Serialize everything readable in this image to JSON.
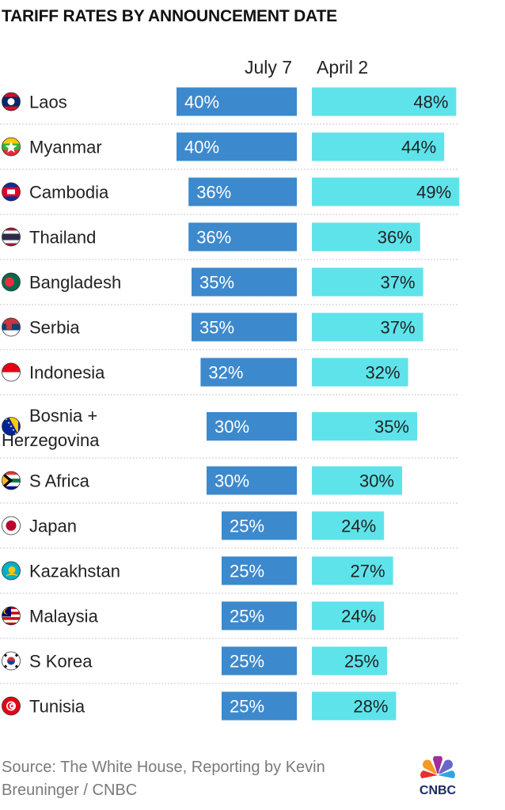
{
  "title": "TARIFF RATES BY ANNOUNCEMENT DATE",
  "chart_data": {
    "type": "bar",
    "title": "TARIFF RATES BY ANNOUNCEMENT DATE",
    "series_labels": [
      "July 7",
      "April 2"
    ],
    "categories": [
      {
        "name": "Laos",
        "flag": "laos-flag"
      },
      {
        "name": "Myanmar",
        "flag": "myanmar-flag"
      },
      {
        "name": "Cambodia",
        "flag": "cambodia-flag"
      },
      {
        "name": "Thailand",
        "flag": "thailand-flag"
      },
      {
        "name": "Bangladesh",
        "flag": "bangladesh-flag"
      },
      {
        "name": "Serbia",
        "flag": "serbia-flag"
      },
      {
        "name": "Indonesia",
        "flag": "indonesia-flag"
      },
      {
        "name": "Bosnia + Herzegovina",
        "name_lines": [
          "Bosnia +",
          "Herzegovina"
        ],
        "flag": "bosnia-flag"
      },
      {
        "name": "S Africa",
        "flag": "south-africa-flag"
      },
      {
        "name": "Japan",
        "flag": "japan-flag"
      },
      {
        "name": "Kazakhstan",
        "flag": "kazakhstan-flag"
      },
      {
        "name": "Malaysia",
        "flag": "malaysia-flag"
      },
      {
        "name": "S Korea",
        "flag": "south-korea-flag"
      },
      {
        "name": "Tunisia",
        "flag": "tunisia-flag"
      }
    ],
    "series": [
      {
        "name": "July 7",
        "color": "#3d89cd",
        "values": [
          40,
          40,
          36,
          36,
          35,
          35,
          32,
          30,
          30,
          25,
          25,
          25,
          25,
          25
        ],
        "labels": [
          "40%",
          "40%",
          "36%",
          "36%",
          "35%",
          "35%",
          "32%",
          "30%",
          "30%",
          "25%",
          "25%",
          "25%",
          "25%",
          "25%"
        ]
      },
      {
        "name": "April 2",
        "color": "#5ee3eb",
        "values": [
          48,
          44,
          49,
          36,
          37,
          37,
          32,
          35,
          30,
          24,
          27,
          24,
          25,
          28
        ],
        "labels": [
          "48%",
          "44%",
          "49%",
          "36%",
          "37%",
          "37%",
          "32%",
          "35%",
          "30%",
          "24%",
          "27%",
          "24%",
          "25%",
          "28%"
        ]
      }
    ],
    "grid": false,
    "legend": "column headers above bars"
  },
  "source": "Source: The White House, Reporting by Kevin Breuninger / CNBC",
  "logo_text": "CNBC"
}
